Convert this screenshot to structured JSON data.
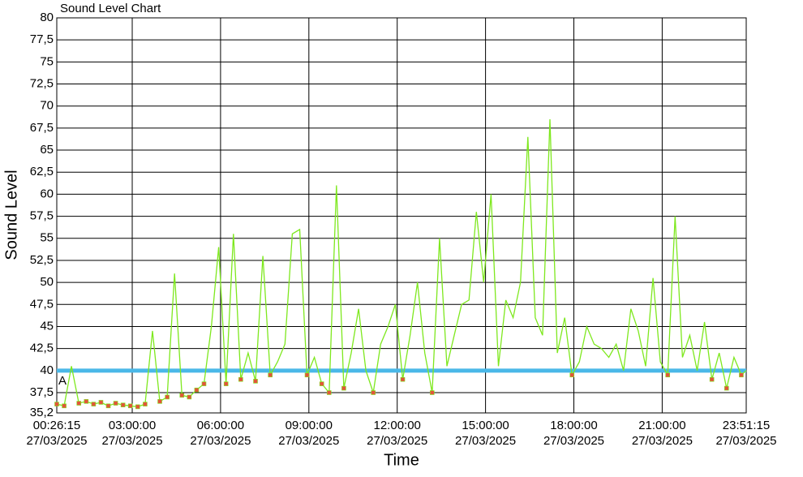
{
  "chart_data": {
    "type": "line",
    "title": "Sound Level Chart",
    "x_label": "Time",
    "y_label": "Sound Level",
    "color": "#7ee81e",
    "marker_color": "#e2553a",
    "threshold": {
      "label": "A",
      "value": 40,
      "color": "#4ab8e8"
    },
    "grid": true,
    "ylim": [
      35.2,
      80
    ],
    "yticks": [
      {
        "value": 35.2,
        "label": "35,2"
      },
      {
        "value": 37.5,
        "label": "37,5"
      },
      40,
      {
        "value": 42.5,
        "label": "42,5"
      },
      45,
      {
        "value": 47.5,
        "label": "47,5"
      },
      50,
      {
        "value": 52.5,
        "label": "52,5"
      },
      55,
      {
        "value": 57.5,
        "label": "57,5"
      },
      60,
      {
        "value": 62.5,
        "label": "62,5"
      },
      65,
      {
        "value": 67.5,
        "label": "67,5"
      },
      70,
      {
        "value": 72.5,
        "label": "72,5"
      },
      75,
      {
        "value": 77.5,
        "label": "77,5"
      },
      80
    ],
    "xlim": [
      "00:26:15",
      "23:51:15"
    ],
    "xticks": [
      {
        "value": "00:26:15",
        "label": "00:26:15\n27/03/2025"
      },
      {
        "value": "03:00:00",
        "label": "03:00:00\n27/03/2025"
      },
      {
        "value": "06:00:00",
        "label": "06:00:00\n27/03/2025"
      },
      {
        "value": "09:00:00",
        "label": "09:00:00\n27/03/2025"
      },
      {
        "value": "12:00:00",
        "label": "12:00:00\n27/03/2025"
      },
      {
        "value": "15:00:00",
        "label": "15:00:00\n27/03/2025"
      },
      {
        "value": "18:00:00",
        "label": "18:00:00\n27/03/2025"
      },
      {
        "value": "21:00:00",
        "label": "21:00:00\n27/03/2025"
      },
      {
        "value": "23:51:15",
        "label": "23:51:15\n27/03/2025"
      }
    ],
    "x": [
      "00:26:15",
      "00:41:15",
      "00:56:15",
      "01:11:15",
      "01:26:15",
      "01:41:15",
      "01:56:15",
      "02:11:15",
      "02:26:15",
      "02:41:15",
      "02:56:15",
      "03:11:15",
      "03:26:15",
      "03:41:15",
      "03:56:15",
      "04:11:15",
      "04:26:15",
      "04:41:15",
      "04:56:15",
      "05:11:15",
      "05:26:15",
      "05:41:15",
      "05:56:15",
      "06:11:15",
      "06:26:15",
      "06:41:15",
      "06:56:15",
      "07:11:15",
      "07:26:15",
      "07:41:15",
      "07:56:15",
      "08:11:15",
      "08:26:15",
      "08:41:15",
      "08:56:15",
      "09:11:15",
      "09:26:15",
      "09:41:15",
      "09:56:15",
      "10:11:15",
      "10:26:15",
      "10:41:15",
      "10:56:15",
      "11:11:15",
      "11:26:15",
      "11:41:15",
      "11:56:15",
      "12:11:15",
      "12:26:15",
      "12:41:15",
      "12:56:15",
      "13:11:15",
      "13:26:15",
      "13:41:15",
      "13:56:15",
      "14:11:15",
      "14:26:15",
      "14:41:15",
      "14:56:15",
      "15:11:15",
      "15:26:15",
      "15:41:15",
      "15:56:15",
      "16:11:15",
      "16:26:15",
      "16:41:15",
      "16:56:15",
      "17:11:15",
      "17:26:15",
      "17:41:15",
      "17:56:15",
      "18:11:15",
      "18:26:15",
      "18:41:15",
      "18:56:15",
      "19:11:15",
      "19:26:15",
      "19:41:15",
      "19:56:15",
      "20:11:15",
      "20:26:15",
      "20:41:15",
      "20:56:15",
      "21:11:15",
      "21:26:15",
      "21:41:15",
      "21:56:15",
      "22:11:15",
      "22:26:15",
      "22:41:15",
      "22:56:15",
      "23:11:15",
      "23:26:15",
      "23:41:15",
      "23:51:15"
    ],
    "values": [
      36.2,
      36.0,
      40.5,
      36.3,
      36.5,
      36.2,
      36.4,
      36.0,
      36.3,
      36.1,
      36.0,
      35.9,
      36.2,
      44.5,
      36.5,
      37.0,
      51.0,
      37.2,
      37.0,
      37.8,
      38.5,
      45.0,
      54.0,
      38.5,
      55.5,
      39.0,
      42.0,
      38.8,
      53.0,
      39.5,
      41.0,
      43.0,
      55.5,
      56.0,
      39.5,
      41.5,
      38.5,
      37.5,
      61.0,
      38.0,
      42.0,
      47.0,
      40.0,
      37.5,
      43.0,
      45.0,
      47.5,
      39.0,
      44.0,
      50.0,
      42.0,
      37.5,
      55.0,
      40.5,
      44.0,
      47.5,
      48.0,
      58.0,
      50.0,
      60.0,
      40.5,
      48.0,
      46.0,
      50.0,
      66.5,
      46.0,
      44.0,
      68.5,
      42.0,
      46.0,
      39.5,
      41.0,
      45.0,
      43.0,
      42.5,
      41.5,
      43.0,
      40.0,
      47.0,
      44.5,
      40.5,
      50.5,
      41.0,
      39.5,
      57.5,
      41.5,
      44.0,
      40.0,
      45.5,
      39.0,
      42.0,
      38.0,
      41.5,
      39.5,
      40.0
    ]
  }
}
